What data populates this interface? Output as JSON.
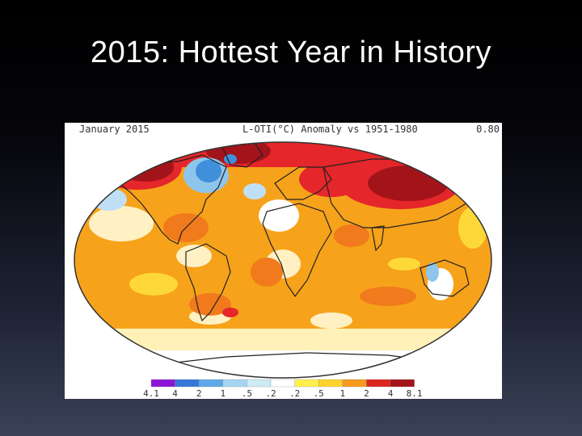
{
  "slide": {
    "title": "2015: Hottest Year in History"
  },
  "map": {
    "period": "January 2015",
    "metric": "L-OTI(°C) Anomaly vs 1951-1980",
    "global_mean": "0.80",
    "colors": {
      "deep_red": "#a3141a",
      "red": "#e5262a",
      "dark_orange": "#f07a1c",
      "orange": "#f7a21b",
      "yellow": "#fed839",
      "pale": "#fff7c2",
      "white": "#ffffff",
      "pale_blue": "#bfe0f4",
      "light_blue": "#8ec6eb",
      "blue": "#3f8fdb",
      "land_outline": "#222222"
    }
  },
  "legend": {
    "colors": [
      "#8d16d6",
      "#3578d8",
      "#5fa9e8",
      "#a6d4f3",
      "#cdebf2",
      "#ffffff",
      "#fff14d",
      "#fed32d",
      "#f79a1e",
      "#dc2620",
      "#a3141a"
    ],
    "ticks": [
      "4.1",
      "4",
      "2",
      "1",
      ".5",
      ".2",
      ".2",
      ".5",
      "1",
      "2",
      "4",
      "8.1"
    ]
  }
}
